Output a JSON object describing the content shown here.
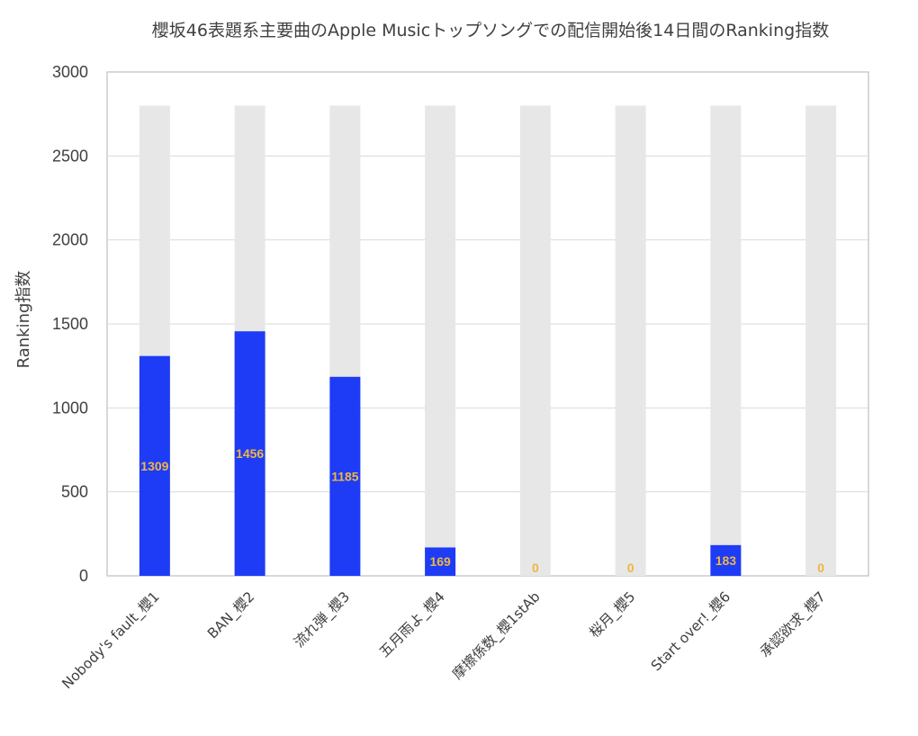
{
  "chart_data": {
    "type": "bar",
    "title": "櫻坂46表題系主要曲のApple Musicトップソングでの配信開始後14日間のRanking指数",
    "xlabel": "",
    "ylabel": "Ranking指数",
    "ylim": [
      0,
      3000
    ],
    "yticks": [
      0,
      500,
      1000,
      1500,
      2000,
      2500,
      3000
    ],
    "grid": true,
    "legend": "none",
    "categories": [
      "Nobody's fault_櫻1",
      "BAN_櫻2",
      "流れ弾_櫻3",
      "五月雨よ_櫻4",
      "摩擦係数_櫻1stAb",
      "桜月_櫻5",
      "Start over!_櫻6",
      "承認欲求_櫻7"
    ],
    "series": [
      {
        "role": "background",
        "values": [
          2800,
          2800,
          2800,
          2800,
          2800,
          2800,
          2800,
          2800
        ],
        "color": "#e7e7e7"
      },
      {
        "role": "value",
        "values": [
          1309,
          1456,
          1185,
          169,
          0,
          0,
          183,
          0
        ],
        "color": "#1e3cf5",
        "data_labels": [
          "1309",
          "1456",
          "1185",
          "169",
          "0",
          "0",
          "183",
          "0"
        ],
        "data_label_color": "#f0b545"
      }
    ]
  }
}
